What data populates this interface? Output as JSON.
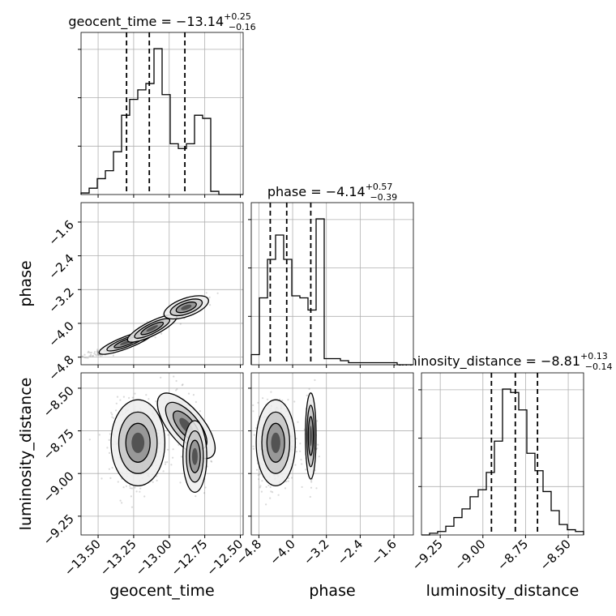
{
  "chart_data": {
    "type": "corner",
    "parameters": [
      "geocent_time",
      "phase",
      "luminosity_distance"
    ],
    "titles": [
      {
        "param": "geocent_time",
        "median": "−13.14",
        "plus": "+0.25",
        "minus": "−0.16"
      },
      {
        "param": "phase",
        "median": "−4.14",
        "plus": "+0.57",
        "minus": "−0.39"
      },
      {
        "param": "luminosity_distance",
        "median": "−8.81",
        "plus": "+0.13",
        "minus": "−0.14"
      }
    ],
    "axes": {
      "geocent_time": {
        "range": [
          -13.62,
          -12.48
        ],
        "ticks": [
          -13.5,
          -13.25,
          -13.0,
          -12.75,
          -12.5
        ],
        "tick_labels": [
          "−13.50",
          "−13.25",
          "−13.00",
          "−12.75",
          "−12.50"
        ]
      },
      "phase": {
        "range": [
          -4.98,
          -1.14
        ],
        "ticks": [
          -4.8,
          -4.0,
          -3.2,
          -2.4,
          -1.6
        ],
        "tick_labels": [
          "−4.8",
          "−4.0",
          "−3.2",
          "−2.4",
          "−1.6"
        ]
      },
      "luminosity_distance": {
        "range": [
          -9.36,
          -8.41
        ],
        "ticks": [
          -9.25,
          -9.0,
          -8.75,
          -8.5
        ],
        "tick_labels": [
          "−9.25",
          "−9.00",
          "−8.75",
          "−8.50"
        ]
      }
    },
    "histograms": {
      "geocent_time": {
        "edges": [
          -13.62,
          -13.563,
          -13.506,
          -13.449,
          -13.392,
          -13.335,
          -13.278,
          -13.221,
          -13.164,
          -13.107,
          -13.05,
          -12.993,
          -12.936,
          -12.879,
          -12.822,
          -12.765,
          -12.708,
          -12.651,
          -12.594,
          -12.537,
          -12.48
        ],
        "counts": [
          1,
          4,
          10,
          15,
          27,
          50,
          60,
          66,
          70,
          92,
          63,
          32,
          29,
          32,
          50,
          48,
          2,
          0,
          0,
          0
        ],
        "quantiles": [
          -13.3,
          -13.14,
          -12.89
        ]
      },
      "phase": {
        "edges": [
          -4.98,
          -4.788,
          -4.596,
          -4.404,
          -4.212,
          -4.02,
          -3.828,
          -3.636,
          -3.444,
          -3.252,
          -3.06,
          -2.868,
          -2.676,
          -2.484,
          -2.292,
          -2.1,
          -1.908,
          -1.716,
          -1.524,
          -1.332,
          -1.14
        ],
        "counts": [
          5,
          33,
          52,
          64,
          52,
          34,
          33,
          27,
          72,
          3,
          3,
          2,
          1,
          1,
          1,
          1,
          1,
          1,
          0,
          0
        ],
        "quantiles": [
          -4.53,
          -4.14,
          -3.57
        ]
      },
      "luminosity_distance": {
        "edges": [
          -9.36,
          -9.3125,
          -9.265,
          -9.2175,
          -9.17,
          -9.1225,
          -9.075,
          -9.0275,
          -8.98,
          -8.9325,
          -8.885,
          -8.8375,
          -8.79,
          -8.7425,
          -8.695,
          -8.6475,
          -8.6,
          -8.5525,
          -8.505,
          -8.4575,
          -8.41
        ],
        "counts": [
          0,
          1,
          2,
          5,
          10,
          15,
          22,
          26,
          36,
          54,
          84,
          82,
          72,
          47,
          37,
          25,
          14,
          6,
          3,
          2
        ],
        "quantiles": [
          -8.95,
          -8.81,
          -8.68
        ]
      }
    },
    "scatter_style": {
      "point_color": "#777777",
      "contour_color": "#000000",
      "fill_colors": [
        "#ededed",
        "#c4c4c4",
        "#8f8f8f",
        "#474747",
        "#000000"
      ]
    },
    "grid": true
  }
}
